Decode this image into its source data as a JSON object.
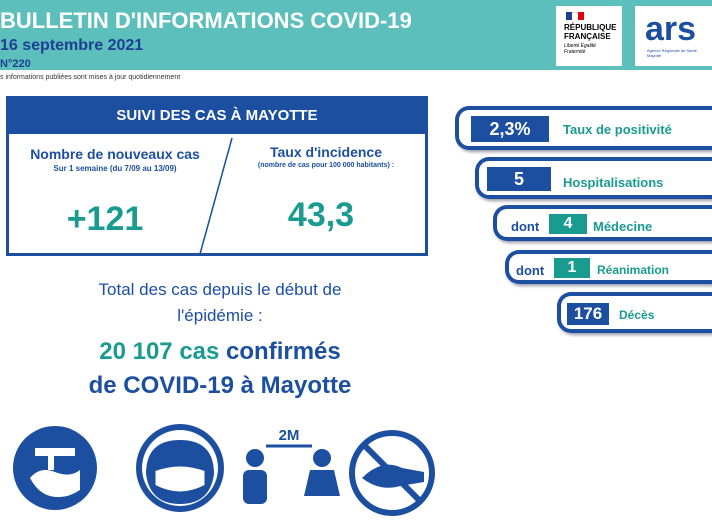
{
  "header": {
    "title": "BULLETIN D'INFORMATIONS COVID-19",
    "date": "16 septembre 2021",
    "number": "N°220",
    "note": "s informations publiées sont mises à jour quotidiennement"
  },
  "logos": {
    "republique": "RÉPUBLIQUE FRANÇAISE",
    "devise": "Liberté Égalité Fraternité",
    "ars": "ars",
    "ars_sub": "Agence Régionale de Santé Mayotte"
  },
  "suivi": {
    "title": "SUIVI DES CAS À MAYOTTE",
    "new_cases": {
      "label": "Nombre de nouveaux cas",
      "sub": "Sur 1 semaine (du 7/09 au 13/09)",
      "value": "+121"
    },
    "incidence": {
      "label": "Taux d'incidence",
      "sub": "(nombre de cas pour 100 000 habitants) :",
      "value": "43,3"
    }
  },
  "total": {
    "line1": "Total des cas depuis le début de",
    "line2": "l'épidémie :",
    "count": "20 107 cas",
    "confirmed": "confirmés",
    "line4": "de COVID-19 à Mayotte"
  },
  "indicators": [
    {
      "value": "2,3%",
      "label": "Taux de positivité"
    },
    {
      "value": "5",
      "label": "Hospitalisations"
    },
    {
      "prefix": "dont",
      "value": "4",
      "label": "Médecine"
    },
    {
      "prefix": "dont",
      "value": "1",
      "label": "Réanimation"
    },
    {
      "value": "176",
      "label": "Décès"
    }
  ],
  "icons": {
    "distance": "2M"
  }
}
